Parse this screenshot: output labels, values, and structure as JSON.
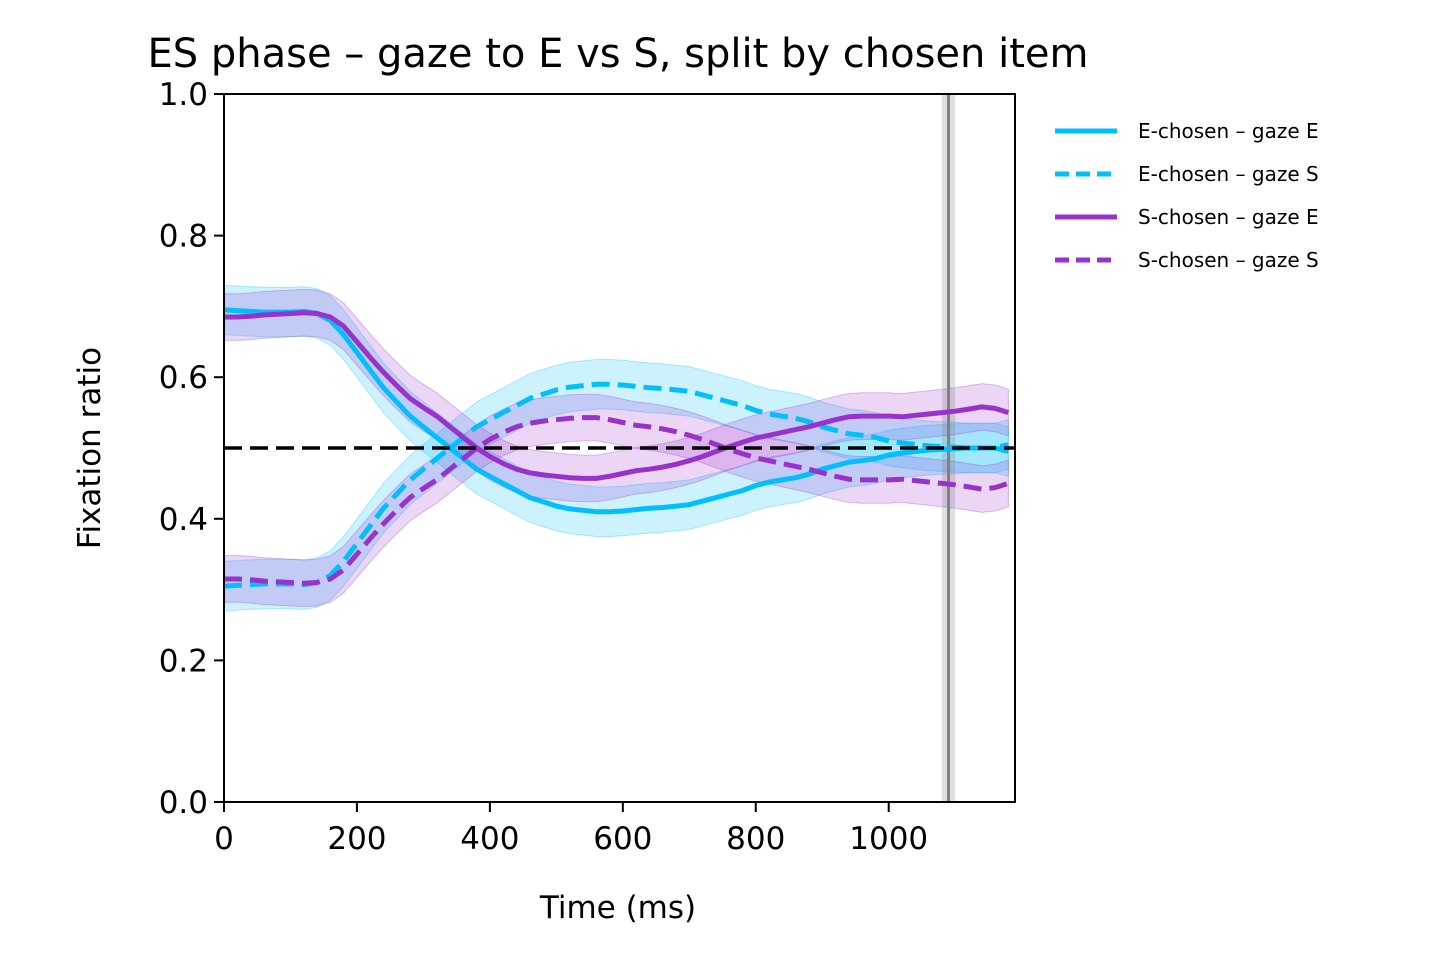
{
  "chart_data": {
    "type": "line",
    "title": "ES phase – gaze to E vs S, split by chosen item",
    "xlabel": "Time (ms)",
    "ylabel": "Fixation ratio",
    "xlim": [
      0,
      1190
    ],
    "ylim": [
      0.0,
      1.0
    ],
    "xticks": [
      0,
      200,
      400,
      600,
      800,
      1000
    ],
    "xtick_labels": [
      "0",
      "200",
      "400",
      "600",
      "800",
      "1000"
    ],
    "yticks": [
      0.0,
      0.2,
      0.4,
      0.6,
      0.8,
      1.0
    ],
    "ytick_labels": [
      "0.0",
      "0.2",
      "0.4",
      "0.6",
      "0.8",
      "1.0"
    ],
    "grid": false,
    "legend_position": "outside-right",
    "reference_lines": {
      "horizontal_dashed_y": 0.5,
      "vertical_dashed_x": 0,
      "vertical_solid_x": 1090,
      "vertical_band_x": [
        1080,
        1100
      ]
    },
    "x": [
      0,
      20,
      40,
      60,
      80,
      100,
      120,
      140,
      160,
      180,
      200,
      220,
      240,
      260,
      280,
      300,
      320,
      340,
      360,
      380,
      400,
      420,
      440,
      460,
      480,
      500,
      520,
      540,
      560,
      580,
      600,
      620,
      640,
      660,
      680,
      700,
      720,
      740,
      760,
      780,
      800,
      820,
      840,
      860,
      880,
      900,
      920,
      940,
      960,
      980,
      1000,
      1020,
      1040,
      1060,
      1080,
      1100,
      1120,
      1140,
      1160,
      1180
    ],
    "series": [
      {
        "name": "E-chosen – gaze E",
        "color": "#00bfff",
        "dash": "solid",
        "values": [
          0.695,
          0.694,
          0.693,
          0.692,
          0.692,
          0.692,
          0.693,
          0.69,
          0.68,
          0.66,
          0.635,
          0.61,
          0.585,
          0.565,
          0.545,
          0.53,
          0.515,
          0.5,
          0.485,
          0.47,
          0.46,
          0.45,
          0.44,
          0.43,
          0.424,
          0.418,
          0.414,
          0.412,
          0.41,
          0.41,
          0.411,
          0.413,
          0.415,
          0.416,
          0.418,
          0.42,
          0.425,
          0.43,
          0.435,
          0.44,
          0.447,
          0.452,
          0.455,
          0.458,
          0.463,
          0.47,
          0.475,
          0.48,
          0.482,
          0.485,
          0.49,
          0.493,
          0.495,
          0.497,
          0.498,
          0.499,
          0.5,
          0.5,
          0.5,
          0.495
        ],
        "ci": 0.035
      },
      {
        "name": "E-chosen – gaze S",
        "color": "#00bfff",
        "dash": "dashed",
        "values": [
          0.305,
          0.306,
          0.307,
          0.308,
          0.308,
          0.308,
          0.307,
          0.31,
          0.32,
          0.34,
          0.365,
          0.39,
          0.415,
          0.435,
          0.455,
          0.47,
          0.485,
          0.5,
          0.515,
          0.53,
          0.54,
          0.55,
          0.56,
          0.57,
          0.576,
          0.582,
          0.586,
          0.588,
          0.59,
          0.59,
          0.589,
          0.587,
          0.585,
          0.584,
          0.582,
          0.58,
          0.575,
          0.57,
          0.565,
          0.56,
          0.553,
          0.548,
          0.545,
          0.542,
          0.537,
          0.53,
          0.525,
          0.52,
          0.518,
          0.515,
          0.51,
          0.507,
          0.505,
          0.503,
          0.502,
          0.501,
          0.5,
          0.5,
          0.5,
          0.505
        ],
        "ci": 0.035
      },
      {
        "name": "S-chosen – gaze E",
        "color": "#9932cc",
        "dash": "solid",
        "values": [
          0.685,
          0.685,
          0.686,
          0.688,
          0.689,
          0.69,
          0.691,
          0.69,
          0.685,
          0.672,
          0.65,
          0.628,
          0.607,
          0.588,
          0.57,
          0.557,
          0.545,
          0.53,
          0.515,
          0.5,
          0.488,
          0.478,
          0.47,
          0.465,
          0.462,
          0.46,
          0.458,
          0.457,
          0.457,
          0.46,
          0.464,
          0.468,
          0.47,
          0.473,
          0.477,
          0.482,
          0.488,
          0.495,
          0.502,
          0.508,
          0.514,
          0.518,
          0.522,
          0.526,
          0.53,
          0.535,
          0.54,
          0.544,
          0.545,
          0.545,
          0.545,
          0.544,
          0.546,
          0.548,
          0.55,
          0.552,
          0.555,
          0.558,
          0.556,
          0.55
        ],
        "ci": 0.033
      },
      {
        "name": "S-chosen – gaze S",
        "color": "#9932cc",
        "dash": "dashed",
        "values": [
          0.315,
          0.315,
          0.314,
          0.312,
          0.311,
          0.31,
          0.309,
          0.31,
          0.315,
          0.328,
          0.35,
          0.372,
          0.393,
          0.412,
          0.43,
          0.443,
          0.455,
          0.47,
          0.485,
          0.5,
          0.512,
          0.522,
          0.53,
          0.535,
          0.538,
          0.54,
          0.542,
          0.543,
          0.543,
          0.54,
          0.536,
          0.532,
          0.53,
          0.527,
          0.523,
          0.518,
          0.512,
          0.505,
          0.498,
          0.492,
          0.486,
          0.482,
          0.478,
          0.474,
          0.47,
          0.465,
          0.46,
          0.456,
          0.455,
          0.455,
          0.455,
          0.456,
          0.454,
          0.452,
          0.45,
          0.448,
          0.445,
          0.442,
          0.444,
          0.45
        ],
        "ci": 0.033
      }
    ]
  }
}
